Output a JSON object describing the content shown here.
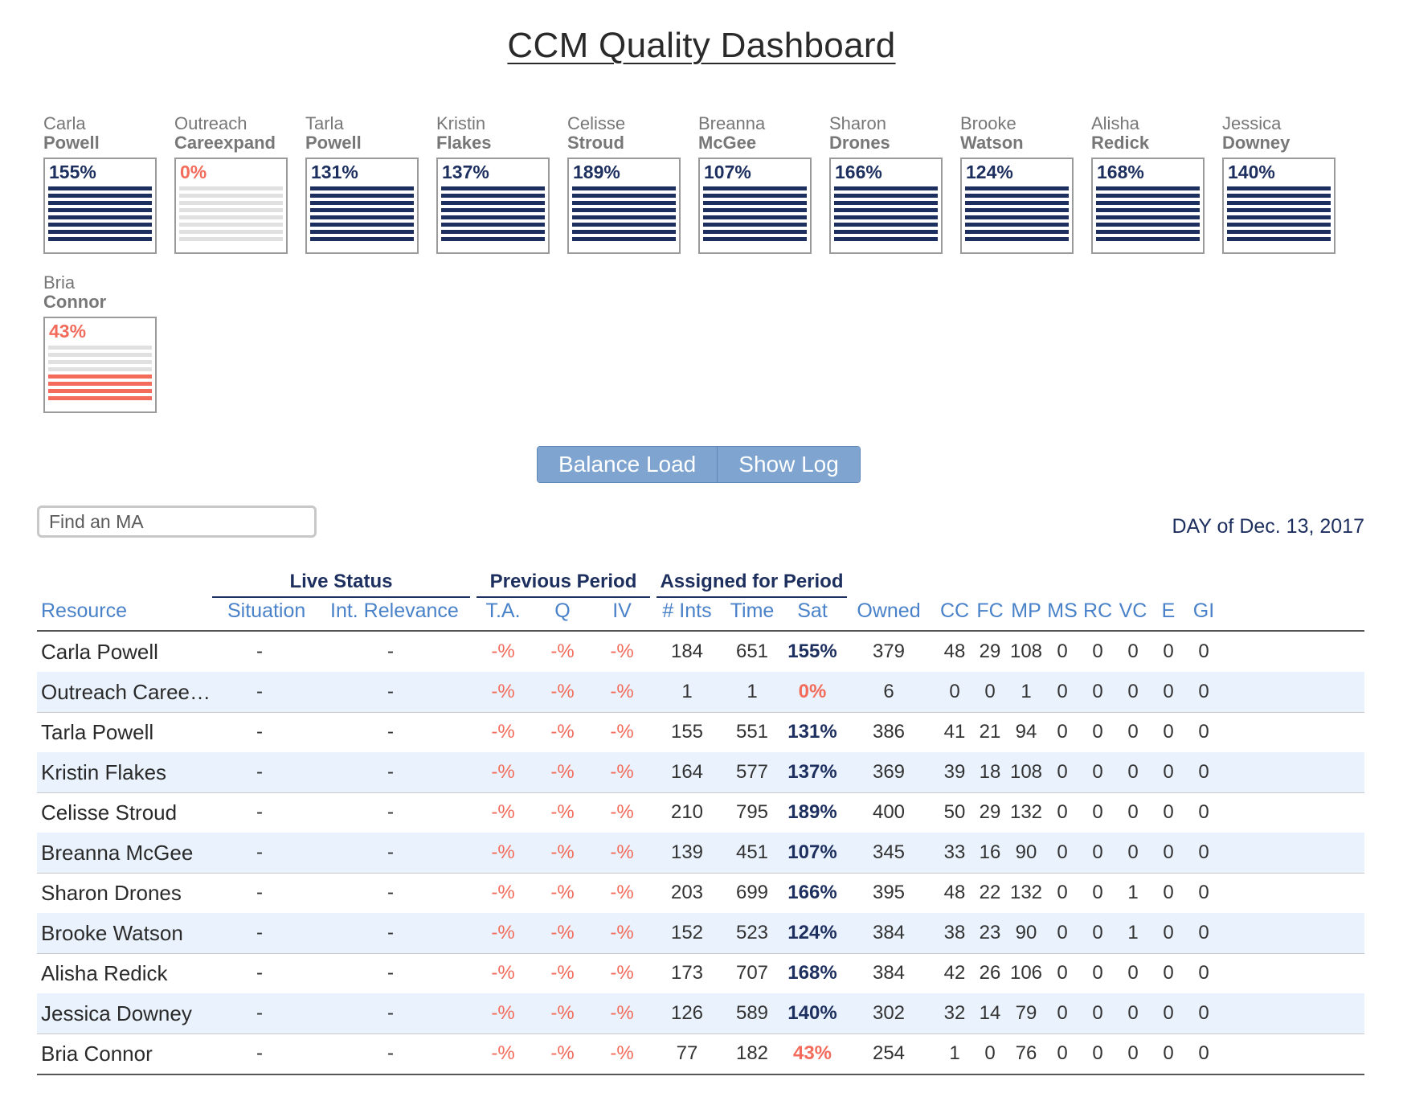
{
  "title": "CCM Quality Dashboard",
  "cards": [
    {
      "first": "Carla",
      "last": "Powell",
      "pct": "155%",
      "bars": 8,
      "status": "ok"
    },
    {
      "first": "Outreach",
      "last": "Careexpand",
      "pct": "0%",
      "bars": 0,
      "status": "low"
    },
    {
      "first": "Tarla",
      "last": "Powell",
      "pct": "131%",
      "bars": 8,
      "status": "ok"
    },
    {
      "first": "Kristin",
      "last": "Flakes",
      "pct": "137%",
      "bars": 8,
      "status": "ok"
    },
    {
      "first": "Celisse",
      "last": "Stroud",
      "pct": "189%",
      "bars": 8,
      "status": "ok"
    },
    {
      "first": "Breanna",
      "last": "McGee",
      "pct": "107%",
      "bars": 8,
      "status": "ok"
    },
    {
      "first": "Sharon",
      "last": "Drones",
      "pct": "166%",
      "bars": 8,
      "status": "ok"
    },
    {
      "first": "Brooke",
      "last": "Watson",
      "pct": "124%",
      "bars": 8,
      "status": "ok"
    },
    {
      "first": "Alisha",
      "last": "Redick",
      "pct": "168%",
      "bars": 8,
      "status": "ok"
    },
    {
      "first": "Jessica",
      "last": "Downey",
      "pct": "140%",
      "bars": 8,
      "status": "ok"
    },
    {
      "first": "Bria",
      "last": "Connor",
      "pct": "43%",
      "bars": 4,
      "status": "low"
    }
  ],
  "buttons": {
    "balance": "Balance Load",
    "log": "Show Log"
  },
  "search": {
    "placeholder": "Find an MA"
  },
  "date": "DAY of Dec. 13, 2017",
  "groups": {
    "live": "Live Status",
    "previous": "Previous Period",
    "assigned": "Assigned for Period"
  },
  "headers": [
    "Resource",
    "Situation",
    "Int. Relevance",
    "T.A.",
    "Q",
    "IV",
    "# Ints",
    "Time",
    "Sat",
    "Owned",
    "CC",
    "FC",
    "MP",
    "MS",
    "RC",
    "VC",
    "E",
    "GI"
  ],
  "rows": [
    {
      "name": "Carla Powell",
      "situation": "-",
      "relevance": "-",
      "ta": "-%",
      "q": "-%",
      "iv": "-%",
      "ints": "184",
      "time": "651",
      "sat": "155%",
      "sat_low": false,
      "owned": "379",
      "cc": "48",
      "fc": "29",
      "mp": "108",
      "ms": "0",
      "rc": "0",
      "vc": "0",
      "e": "0",
      "gi": "0"
    },
    {
      "name": "Outreach Careexp…",
      "situation": "-",
      "relevance": "-",
      "ta": "-%",
      "q": "-%",
      "iv": "-%",
      "ints": "1",
      "time": "1",
      "sat": "0%",
      "sat_low": true,
      "owned": "6",
      "cc": "0",
      "fc": "0",
      "mp": "1",
      "ms": "0",
      "rc": "0",
      "vc": "0",
      "e": "0",
      "gi": "0"
    },
    {
      "name": "Tarla Powell",
      "situation": "-",
      "relevance": "-",
      "ta": "-%",
      "q": "-%",
      "iv": "-%",
      "ints": "155",
      "time": "551",
      "sat": "131%",
      "sat_low": false,
      "owned": "386",
      "cc": "41",
      "fc": "21",
      "mp": "94",
      "ms": "0",
      "rc": "0",
      "vc": "0",
      "e": "0",
      "gi": "0"
    },
    {
      "name": "Kristin Flakes",
      "situation": "-",
      "relevance": "-",
      "ta": "-%",
      "q": "-%",
      "iv": "-%",
      "ints": "164",
      "time": "577",
      "sat": "137%",
      "sat_low": false,
      "owned": "369",
      "cc": "39",
      "fc": "18",
      "mp": "108",
      "ms": "0",
      "rc": "0",
      "vc": "0",
      "e": "0",
      "gi": "0"
    },
    {
      "name": "Celisse Stroud",
      "situation": "-",
      "relevance": "-",
      "ta": "-%",
      "q": "-%",
      "iv": "-%",
      "ints": "210",
      "time": "795",
      "sat": "189%",
      "sat_low": false,
      "owned": "400",
      "cc": "50",
      "fc": "29",
      "mp": "132",
      "ms": "0",
      "rc": "0",
      "vc": "0",
      "e": "0",
      "gi": "0"
    },
    {
      "name": "Breanna McGee",
      "situation": "-",
      "relevance": "-",
      "ta": "-%",
      "q": "-%",
      "iv": "-%",
      "ints": "139",
      "time": "451",
      "sat": "107%",
      "sat_low": false,
      "owned": "345",
      "cc": "33",
      "fc": "16",
      "mp": "90",
      "ms": "0",
      "rc": "0",
      "vc": "0",
      "e": "0",
      "gi": "0"
    },
    {
      "name": "Sharon Drones",
      "situation": "-",
      "relevance": "-",
      "ta": "-%",
      "q": "-%",
      "iv": "-%",
      "ints": "203",
      "time": "699",
      "sat": "166%",
      "sat_low": false,
      "owned": "395",
      "cc": "48",
      "fc": "22",
      "mp": "132",
      "ms": "0",
      "rc": "0",
      "vc": "1",
      "e": "0",
      "gi": "0"
    },
    {
      "name": "Brooke Watson",
      "situation": "-",
      "relevance": "-",
      "ta": "-%",
      "q": "-%",
      "iv": "-%",
      "ints": "152",
      "time": "523",
      "sat": "124%",
      "sat_low": false,
      "owned": "384",
      "cc": "38",
      "fc": "23",
      "mp": "90",
      "ms": "0",
      "rc": "0",
      "vc": "1",
      "e": "0",
      "gi": "0"
    },
    {
      "name": "Alisha Redick",
      "situation": "-",
      "relevance": "-",
      "ta": "-%",
      "q": "-%",
      "iv": "-%",
      "ints": "173",
      "time": "707",
      "sat": "168%",
      "sat_low": false,
      "owned": "384",
      "cc": "42",
      "fc": "26",
      "mp": "106",
      "ms": "0",
      "rc": "0",
      "vc": "0",
      "e": "0",
      "gi": "0"
    },
    {
      "name": "Jessica Downey",
      "situation": "-",
      "relevance": "-",
      "ta": "-%",
      "q": "-%",
      "iv": "-%",
      "ints": "126",
      "time": "589",
      "sat": "140%",
      "sat_low": false,
      "owned": "302",
      "cc": "32",
      "fc": "14",
      "mp": "79",
      "ms": "0",
      "rc": "0",
      "vc": "0",
      "e": "0",
      "gi": "0"
    },
    {
      "name": "Bria Connor",
      "situation": "-",
      "relevance": "-",
      "ta": "-%",
      "q": "-%",
      "iv": "-%",
      "ints": "77",
      "time": "182",
      "sat": "43%",
      "sat_low": true,
      "owned": "254",
      "cc": "1",
      "fc": "0",
      "mp": "76",
      "ms": "0",
      "rc": "0",
      "vc": "0",
      "e": "0",
      "gi": "0"
    }
  ],
  "colors": {
    "navy": "#1d2f5e",
    "alert": "#f26b5b",
    "link": "#4a82c9",
    "button": "#7ea4cf",
    "alt_row": "#eaf3fd"
  }
}
